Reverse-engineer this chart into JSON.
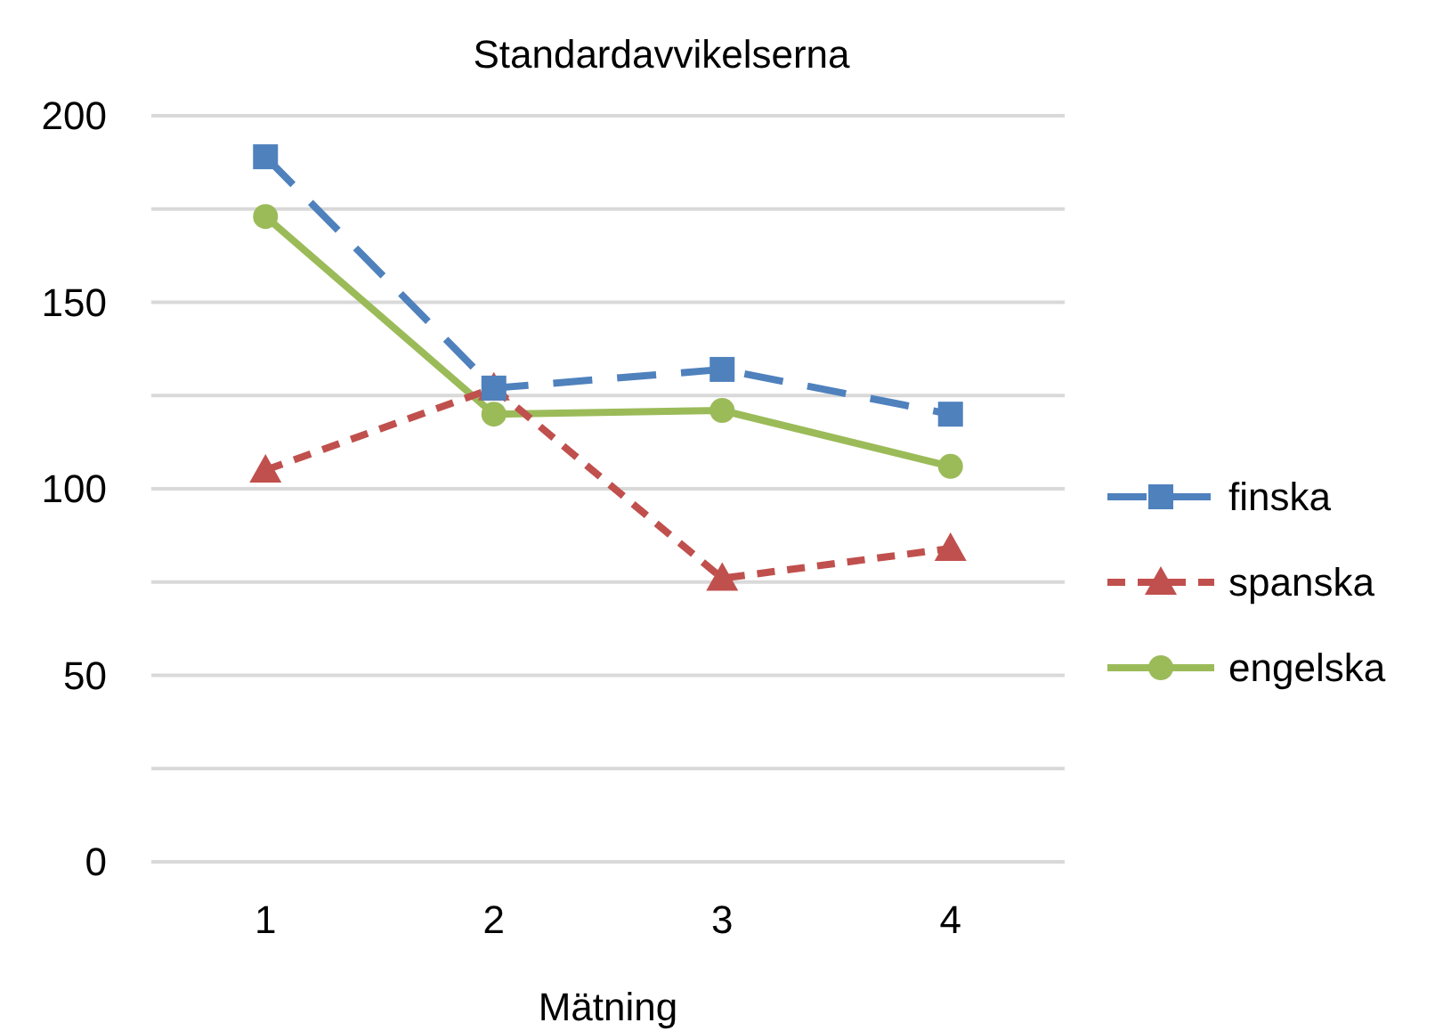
{
  "chart_data": {
    "type": "line",
    "title": "Standardavvikelserna",
    "xlabel": "Mätning",
    "categories": [
      "1",
      "2",
      "3",
      "4"
    ],
    "series": [
      {
        "name": "finska",
        "color": "#4f81bd",
        "values": [
          189,
          127,
          132,
          120
        ],
        "marker": "square",
        "line_style": "dashed"
      },
      {
        "name": "spanska",
        "color": "#c0504d",
        "values": [
          105,
          127,
          76,
          84
        ],
        "marker": "triangle",
        "line_style": "dotted"
      },
      {
        "name": "engelska",
        "color": "#9bbb59",
        "values": [
          173,
          120,
          121,
          106
        ],
        "marker": "circle",
        "line_style": "solid"
      }
    ],
    "ylim": [
      0,
      200
    ],
    "yticks": [
      0,
      {
        "value": 25,
        "label": null
      },
      50,
      {
        "value": 75,
        "label": null
      },
      100,
      {
        "value": 125,
        "label": null
      },
      150,
      {
        "value": 175,
        "label": null
      },
      200
    ],
    "grid": "y",
    "legend": "right"
  }
}
